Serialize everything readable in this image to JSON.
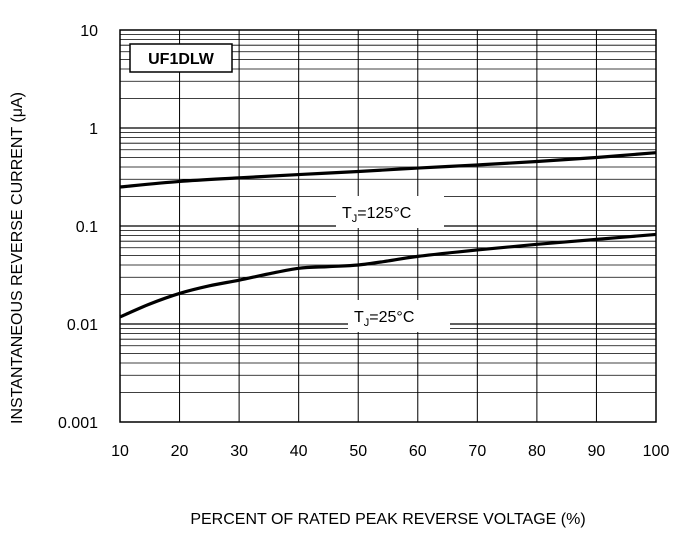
{
  "chart_data": {
    "type": "line",
    "title": "UF1DLW",
    "xlabel": "PERCENT OF RATED PEAK REVERSE VOLTAGE (%)",
    "ylabel": "INSTANTANEOUS REVERSE CURRENT (μA)",
    "x_scale": "linear",
    "y_scale": "log",
    "xlim": [
      10,
      100
    ],
    "ylim": [
      0.001,
      10
    ],
    "x_ticks": [
      "10",
      "20",
      "30",
      "40",
      "50",
      "60",
      "70",
      "80",
      "90",
      "100"
    ],
    "y_ticks": [
      "10",
      "1",
      "0.1",
      "0.01",
      "0.001"
    ],
    "grid": true,
    "series": [
      {
        "name": "TJ=125°C",
        "label_main": "T",
        "label_sub": "J",
        "label_rest": "=125°C",
        "x": [
          10,
          20,
          30,
          40,
          50,
          60,
          70,
          80,
          90,
          100
        ],
        "y": [
          0.25,
          0.285,
          0.31,
          0.335,
          0.36,
          0.39,
          0.42,
          0.455,
          0.5,
          0.56
        ]
      },
      {
        "name": "TJ=25°C",
        "label_main": "T",
        "label_sub": "J",
        "label_rest": "=25°C",
        "x": [
          10,
          15,
          20,
          25,
          30,
          35,
          40,
          45,
          50,
          55,
          60,
          70,
          80,
          90,
          100
        ],
        "y": [
          0.0118,
          0.016,
          0.0205,
          0.0245,
          0.028,
          0.0325,
          0.037,
          0.0385,
          0.04,
          0.044,
          0.049,
          0.057,
          0.065,
          0.073,
          0.082
        ]
      }
    ]
  }
}
